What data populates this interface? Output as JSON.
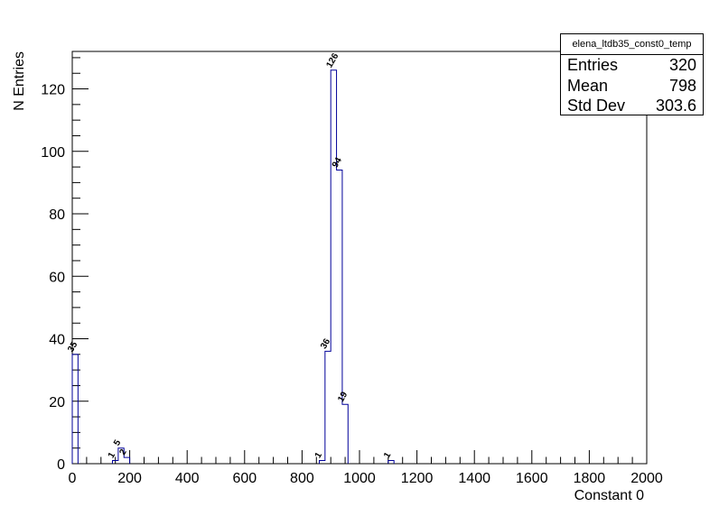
{
  "chart_data": {
    "type": "bar",
    "title": "",
    "xlabel": "Constant 0",
    "ylabel": "N Entries",
    "xlim": [
      0,
      2000
    ],
    "ylim": [
      0,
      132
    ],
    "bin_width": 20,
    "x_ticks": [
      "0",
      "200",
      "400",
      "600",
      "800",
      "1000",
      "1200",
      "1400",
      "1600",
      "1800",
      "2000"
    ],
    "y_ticks": [
      "0",
      "20",
      "40",
      "60",
      "80",
      "100",
      "120"
    ],
    "grid": false,
    "line_color": "#000099",
    "bins": [
      {
        "x": 0,
        "value": 35,
        "label": "35"
      },
      {
        "x": 140,
        "value": 1,
        "label": "1"
      },
      {
        "x": 160,
        "value": 5,
        "label": "5"
      },
      {
        "x": 180,
        "value": 2,
        "label": "2"
      },
      {
        "x": 860,
        "value": 1,
        "label": "1"
      },
      {
        "x": 880,
        "value": 36,
        "label": "36"
      },
      {
        "x": 900,
        "value": 126,
        "label": "126"
      },
      {
        "x": 920,
        "value": 94,
        "label": "94"
      },
      {
        "x": 940,
        "value": 19,
        "label": "19"
      },
      {
        "x": 1100,
        "value": 1,
        "label": "1"
      }
    ]
  },
  "stats": {
    "name": "elena_ltdb35_const0_temp",
    "rows": [
      {
        "label": "Entries",
        "value": "320"
      },
      {
        "label": "Mean",
        "value": "798"
      },
      {
        "label": "Std Dev",
        "value": "303.6"
      }
    ]
  }
}
